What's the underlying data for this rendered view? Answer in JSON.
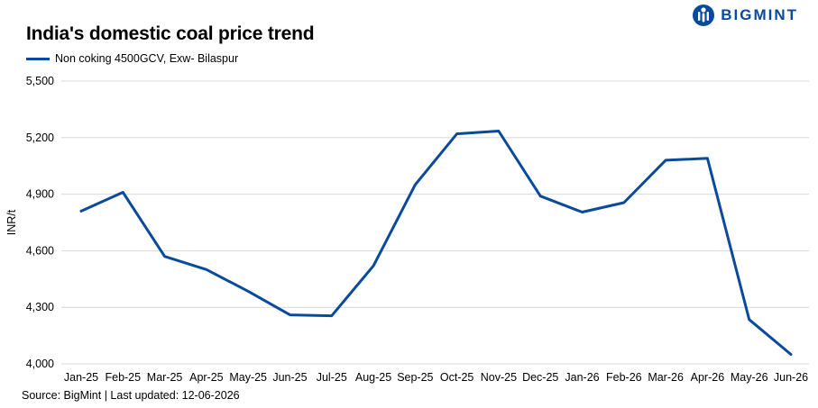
{
  "brand": {
    "name": "BIGMINT",
    "color": "#0a4a9c"
  },
  "chart_data": {
    "type": "line",
    "title": "India's domestic coal price trend",
    "ylabel": "INR/t",
    "xlabel": "",
    "ylim": [
      4000,
      5500
    ],
    "yticks": [
      4000,
      4300,
      4600,
      4900,
      5200,
      5500
    ],
    "ytick_labels": [
      "4,000",
      "4,300",
      "4,600",
      "4,900",
      "5,200",
      "5,500"
    ],
    "grid": true,
    "legend_position": "top-left",
    "categories": [
      "Jan-25",
      "Feb-25",
      "Mar-25",
      "Apr-25",
      "May-25",
      "Jun-25",
      "Jul-25",
      "Aug-25",
      "Sep-25",
      "Oct-25",
      "Nov-25",
      "Dec-25",
      "Jan-26",
      "Feb-26",
      "Mar-26",
      "Apr-26",
      "May-26",
      "Jun-26"
    ],
    "series": [
      {
        "name": "Non coking 4500GCV, Exw- Bilaspur",
        "color": "#0a4a9c",
        "values": [
          4810,
          4910,
          4570,
          4500,
          4385,
          4260,
          4255,
          4520,
          4950,
          5220,
          5235,
          4890,
          4805,
          4855,
          5080,
          5090,
          4235,
          4050
        ]
      }
    ]
  },
  "footer": {
    "source": "Source: BigMint | Last updated: 12-06-2026"
  }
}
